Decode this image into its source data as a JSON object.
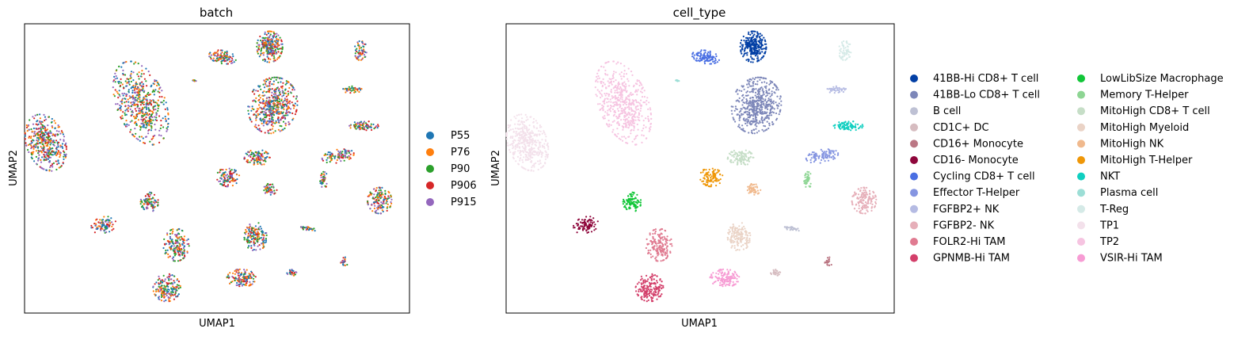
{
  "chart_data": [
    {
      "type": "scatter",
      "title": "batch",
      "xlabel": "UMAP1",
      "ylabel": "UMAP2",
      "legend_placement": "right",
      "legend": [
        {
          "name": "P55",
          "color": "#1f77b4"
        },
        {
          "name": "P76",
          "color": "#ff7f0e"
        },
        {
          "name": "P90",
          "color": "#2ca02c"
        },
        {
          "name": "P906",
          "color": "#d62728"
        },
        {
          "name": "P915",
          "color": "#9467bd"
        }
      ]
    },
    {
      "type": "scatter",
      "title": "cell_type",
      "xlabel": "UMAP1",
      "ylabel": "UMAP2",
      "legend_placement": "right, two columns",
      "legend": [
        {
          "name": "41BB-Hi CD8+ T cell",
          "color": "#023fa5"
        },
        {
          "name": "41BB-Lo CD8+ T cell",
          "color": "#7d87b9"
        },
        {
          "name": "B cell",
          "color": "#bec1d4"
        },
        {
          "name": "CD1C+ DC",
          "color": "#d6bcc0"
        },
        {
          "name": "CD16+ Monocyte",
          "color": "#bb7784"
        },
        {
          "name": "CD16- Monocyte",
          "color": "#8e063b"
        },
        {
          "name": "Cycling CD8+ T cell",
          "color": "#4a6fe3"
        },
        {
          "name": "Effector T-Helper",
          "color": "#8595e1"
        },
        {
          "name": "FGFBP2+ NK",
          "color": "#b5bbe3"
        },
        {
          "name": "FGFBP2- NK",
          "color": "#e6afb9"
        },
        {
          "name": "FOLR2-Hi TAM",
          "color": "#e07b91"
        },
        {
          "name": "GPNMB-Hi TAM",
          "color": "#d33f6a"
        },
        {
          "name": "LowLibSize Macrophage",
          "color": "#11c638"
        },
        {
          "name": "Memory T-Helper",
          "color": "#8dd593"
        },
        {
          "name": "MitoHigh CD8+ T cell",
          "color": "#c6dec7"
        },
        {
          "name": "MitoHigh Myeloid",
          "color": "#ead3c6"
        },
        {
          "name": "MitoHigh NK",
          "color": "#f0b98d"
        },
        {
          "name": "MitoHigh T-Helper",
          "color": "#ef9708"
        },
        {
          "name": "NKT",
          "color": "#0fcfc0"
        },
        {
          "name": "Plasma cell",
          "color": "#9cded6"
        },
        {
          "name": "T-Reg",
          "color": "#d5eae7"
        },
        {
          "name": "TP1",
          "color": "#f3e1eb"
        },
        {
          "name": "TP2",
          "color": "#f6c4e1"
        },
        {
          "name": "VSIR-Hi TAM",
          "color": "#f79cd4"
        }
      ]
    }
  ]
}
